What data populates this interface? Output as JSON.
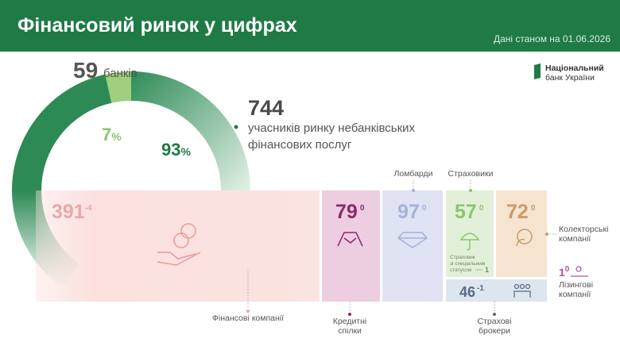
{
  "header": {
    "title": "Фінансовий ринок у цифрах",
    "date": "Дані станом на 01.06.2026"
  },
  "logo": {
    "line1": "Національний",
    "line2": "банк України"
  },
  "unit": "%",
  "banks": {
    "count": 59,
    "label": "банків",
    "share": 7
  },
  "nonbank": {
    "count": 744,
    "label": [
      "учасників ринку небанківських",
      "фінансових послуг"
    ],
    "share": 93
  },
  "segments": [
    {
      "name": [
        "Фінансові компанії"
      ],
      "value": 391,
      "change": -4
    },
    {
      "name": [
        "Кредитні",
        "спілки"
      ],
      "value": 79,
      "change": 0
    },
    {
      "name": [
        "Ломбарди"
      ],
      "value": 97,
      "change": 0
    },
    {
      "name": [
        "Страховики"
      ],
      "value": 57,
      "change": 0,
      "note": {
        "text": [
          "Страховик",
          "зі спеціальним",
          "статусом"
        ],
        "value": 1
      }
    },
    {
      "name": [
        "Колекторські",
        "компанії"
      ],
      "value": 72,
      "change": 0
    },
    {
      "name": [
        "Лізингові",
        "компанії"
      ],
      "value": 1,
      "change": 0
    },
    {
      "name": [
        "Страхові",
        "брокери"
      ],
      "value": 46,
      "change": -1
    }
  ]
}
